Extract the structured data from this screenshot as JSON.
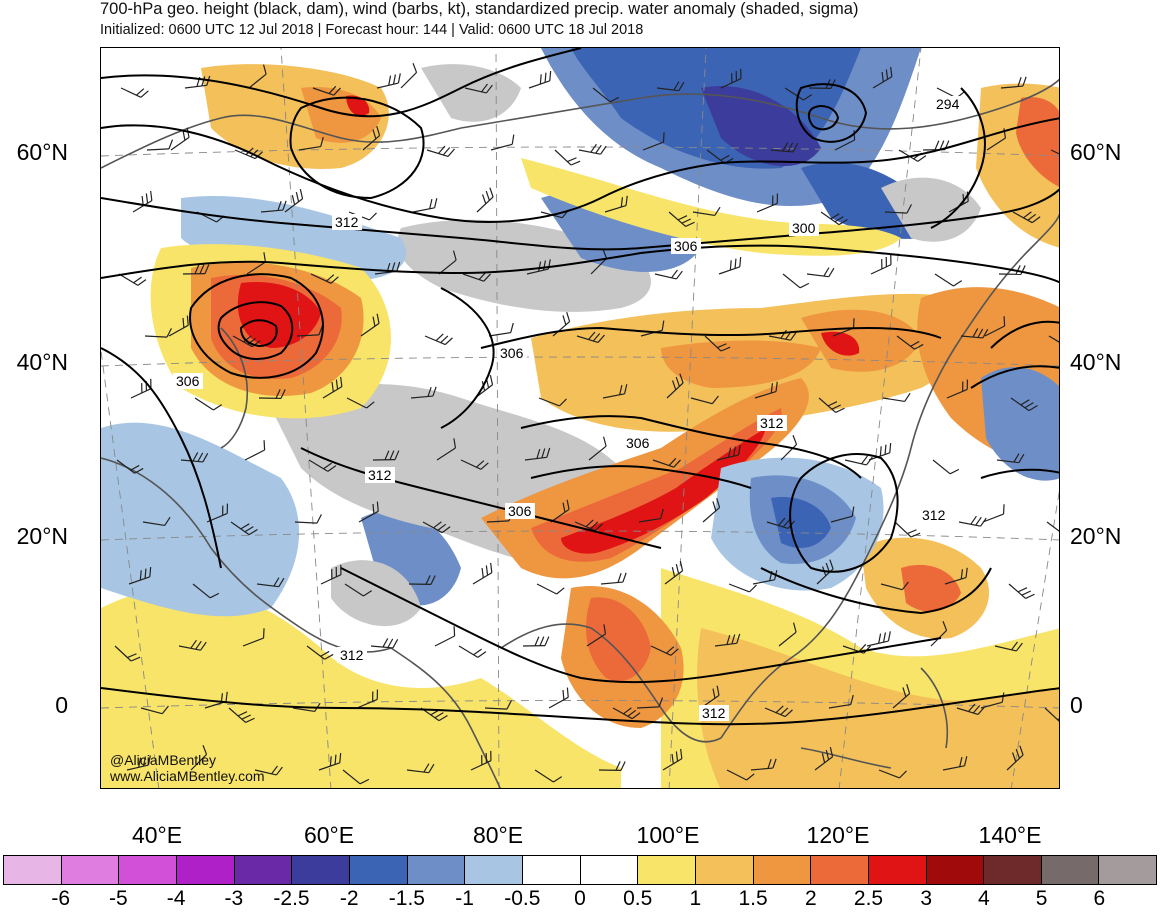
{
  "title": "700-hPa geo. height (black, dam), wind (barbs, kt), standardized precip. water anomaly (shaded, sigma)",
  "subtitle": "Initialized: 0600 UTC 12 Jul 2018 | Forecast hour: 144 | Valid: 0600 UTC 18 Jul 2018",
  "credit": {
    "handle": "@AliciaMBentley",
    "website": "www.AliciaMBentley.com"
  },
  "lat_labels": [
    "60°N",
    "40°N",
    "20°N",
    "0"
  ],
  "lon_labels": [
    "40°E",
    "60°E",
    "80°E",
    "100°E",
    "120°E",
    "140°E"
  ],
  "contour_labels": [
    "294",
    "300",
    "306",
    "306",
    "306",
    "306",
    "306",
    "312",
    "312",
    "312",
    "312",
    "312",
    "312"
  ],
  "colorbar": {
    "labels": [
      "-6",
      "-5",
      "-4",
      "-3",
      "-2.5",
      "-2",
      "-1.5",
      "-1",
      "-0.5",
      "0",
      "0.5",
      "1",
      "1.5",
      "2",
      "2.5",
      "3",
      "4",
      "5",
      "6"
    ],
    "colors": [
      "#e8b6e6",
      "#e07de0",
      "#d24fd8",
      "#b020c8",
      "#6a2aa8",
      "#3c3c9c",
      "#3c64b4",
      "#6e8ec8",
      "#a8c6e4",
      "#ffffff",
      "#ffffff",
      "#f8e468",
      "#f4c05a",
      "#ef9640",
      "#ec6a3a",
      "#e01414",
      "#a00a0a",
      "#6e2a2a",
      "#766a6a",
      "#a49c9c"
    ]
  },
  "map_colors": {
    "neg_light": "#a8c6e4",
    "neg_mid": "#6e8ec8",
    "neg_strong": "#3c64b4",
    "neg_deep": "#3c3c9c",
    "pos_light": "#f8e468",
    "pos_mid": "#f4c05a",
    "pos_orange": "#ef9640",
    "pos_redorange": "#ec6a3a",
    "pos_red": "#e01414",
    "land_gray": "#c8c8c8"
  }
}
